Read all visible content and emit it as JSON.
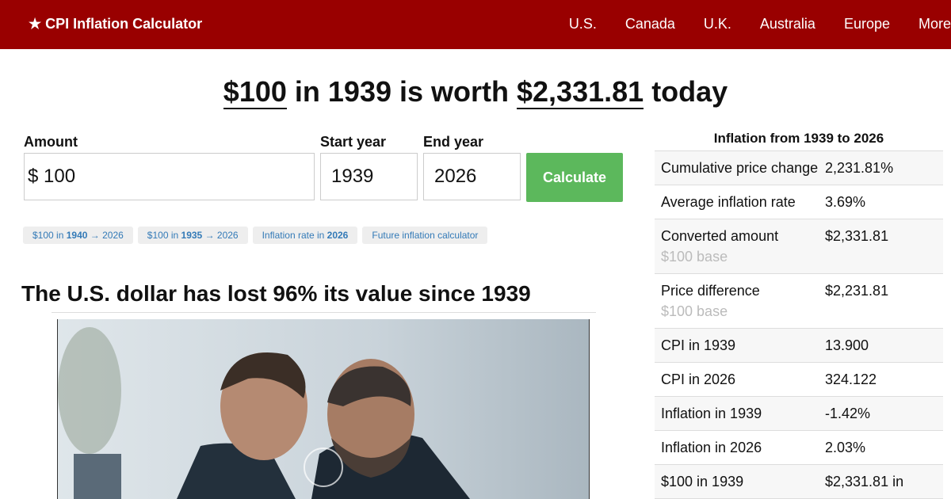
{
  "nav": {
    "brand": "★ CPI Inflation Calculator",
    "links": [
      "U.S.",
      "Canada",
      "U.K.",
      "Australia",
      "Europe",
      "More"
    ]
  },
  "headline": {
    "amount": "$100",
    "middle": "in 1939 is worth",
    "result": "$2,331.81",
    "end": "today"
  },
  "form": {
    "amount_label": "Amount",
    "currency": "$",
    "amount": "100",
    "start_label": "Start year",
    "start_year": "1939",
    "end_label": "End year",
    "end_year": "2026",
    "button": "Calculate"
  },
  "chips": [
    {
      "before": "$100 in",
      "bold": "1940",
      "after": "→ 2026"
    },
    {
      "before": "$100 in",
      "bold": "1935",
      "after": "→ 2026"
    },
    {
      "before": "Inflation rate in",
      "bold": "2026"
    },
    {
      "before": "Future inflation calculator"
    }
  ],
  "section_heading": "The U.S. dollar has lost 96% its value since 1939",
  "summary": {
    "title": "Inflation from 1939 to 2026",
    "rows": [
      {
        "label": "Cumulative price change",
        "value": "2,231.81%"
      },
      {
        "label": "Average inflation rate",
        "value": "3.69%"
      },
      {
        "label": "Converted amount",
        "sub": "$100 base",
        "value": "$2,331.81"
      },
      {
        "label": "Price difference",
        "sub": "$100 base",
        "value": "$2,231.81"
      },
      {
        "label": "CPI in 1939",
        "value": "13.900"
      },
      {
        "label": "CPI in 2026",
        "value": "324.122"
      },
      {
        "label": "Inflation in 1939",
        "value": "-1.42%"
      },
      {
        "label": "Inflation in 2026",
        "value": "2.03%"
      },
      {
        "label": "$100 in 1939",
        "value": "$2,331.81 in"
      }
    ]
  }
}
